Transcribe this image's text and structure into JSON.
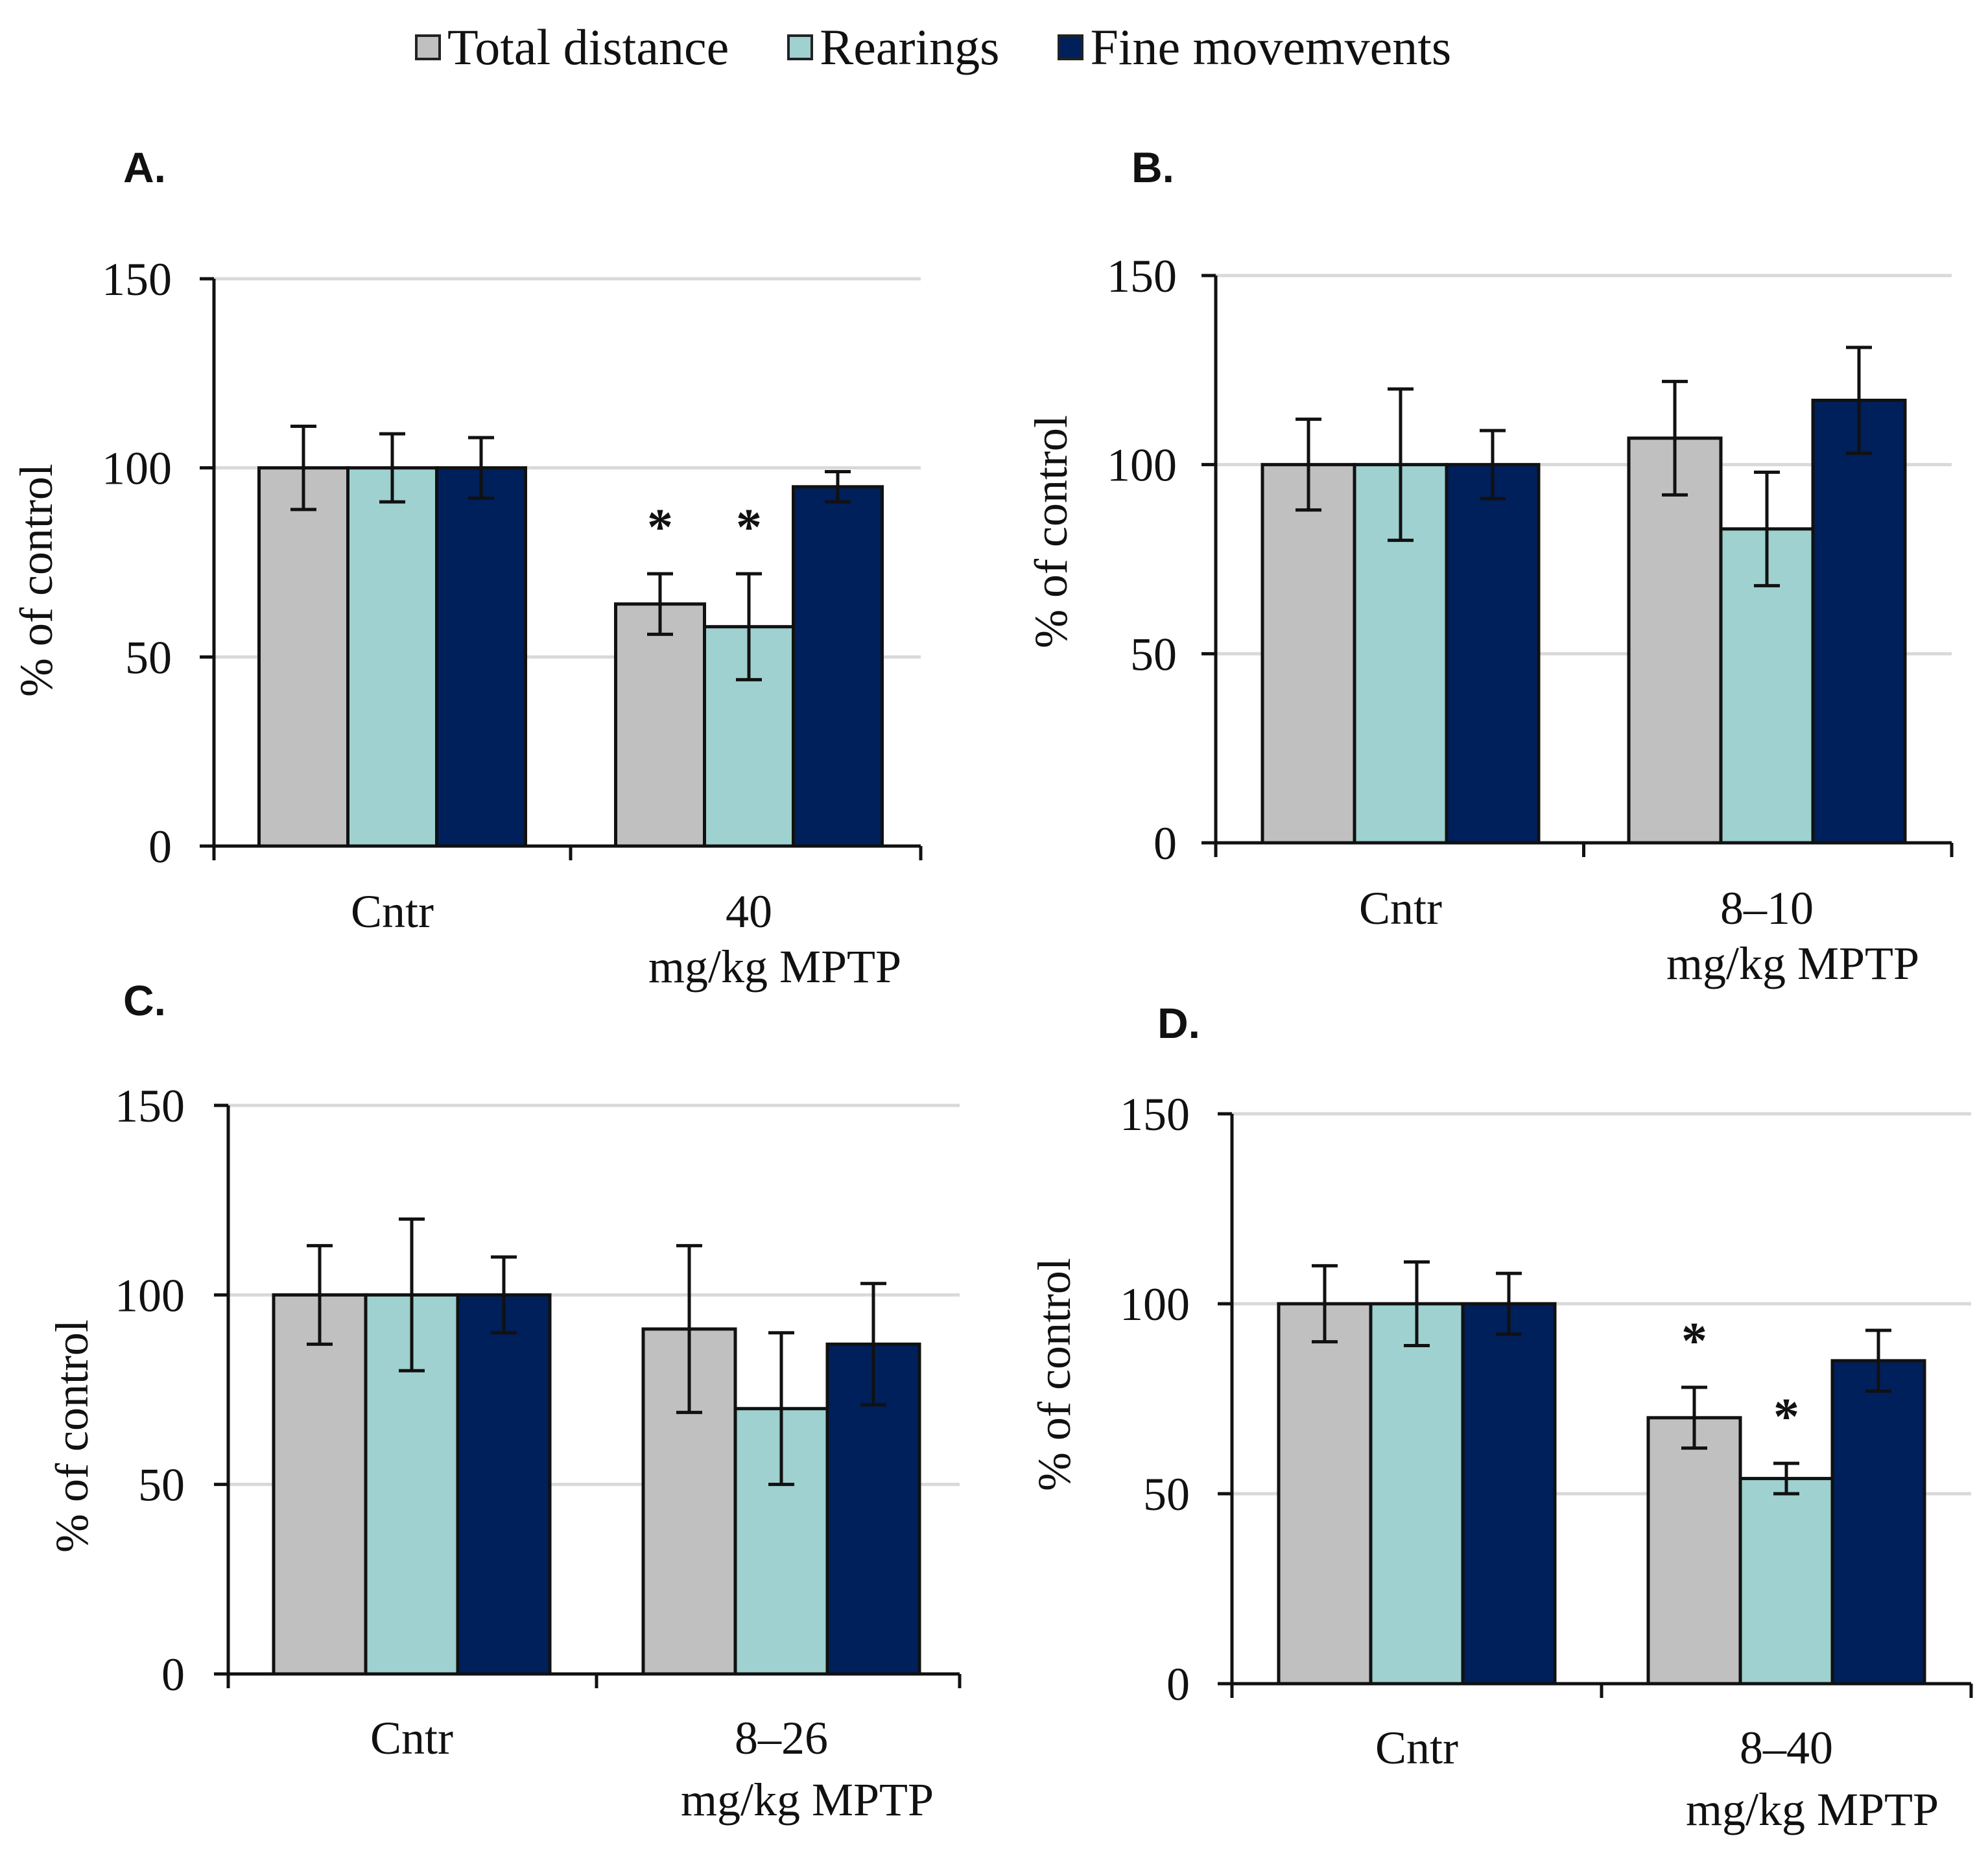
{
  "legend": [
    {
      "label": "Total distance",
      "color": "#c0c0c0"
    },
    {
      "label": "Rearings",
      "color": "#9ed1d0"
    },
    {
      "label": "Fine movemvents",
      "color": "#00205b"
    }
  ],
  "chart_data": [
    {
      "type": "bar",
      "panel": "A.",
      "ylabel": "% of control",
      "ylim": [
        0,
        150
      ],
      "yticks": [
        "0",
        "50",
        "100",
        "150"
      ],
      "categories": [
        [
          "Cntr"
        ],
        [
          "40",
          "mg/kg MPTP"
        ]
      ],
      "series": [
        {
          "name": "Total distance",
          "values": [
            100,
            64
          ],
          "errors": [
            11,
            8
          ],
          "sig": [
            false,
            true
          ]
        },
        {
          "name": "Rearings",
          "values": [
            100,
            58
          ],
          "errors": [
            9,
            14
          ],
          "sig": [
            false,
            true
          ]
        },
        {
          "name": "Fine movemvents",
          "values": [
            100,
            95
          ],
          "errors": [
            8,
            4
          ],
          "sig": [
            false,
            false
          ]
        }
      ],
      "sig_mark": "*"
    },
    {
      "type": "bar",
      "panel": "B.",
      "ylabel": "% of control",
      "ylim": [
        0,
        150
      ],
      "yticks": [
        "0",
        "50",
        "100",
        "150"
      ],
      "categories": [
        [
          "Cntr"
        ],
        [
          "8–10",
          "mg/kg MPTP"
        ]
      ],
      "series": [
        {
          "name": "Total distance",
          "values": [
            100,
            107
          ],
          "errors": [
            12,
            15
          ],
          "sig": [
            false,
            false
          ]
        },
        {
          "name": "Rearings",
          "values": [
            100,
            83
          ],
          "errors": [
            20,
            15
          ],
          "sig": [
            false,
            false
          ]
        },
        {
          "name": "Fine movemvents",
          "values": [
            100,
            117
          ],
          "errors": [
            9,
            14
          ],
          "sig": [
            false,
            false
          ]
        }
      ],
      "sig_mark": "*"
    },
    {
      "type": "bar",
      "panel": "C.",
      "ylabel": "% of control",
      "ylim": [
        0,
        150
      ],
      "yticks": [
        "0",
        "50",
        "100",
        "150"
      ],
      "categories": [
        [
          "Cntr"
        ],
        [
          "8–26",
          "mg/kg MPTP"
        ]
      ],
      "series": [
        {
          "name": "Total distance",
          "values": [
            100,
            91
          ],
          "errors": [
            13,
            22
          ],
          "sig": [
            false,
            false
          ]
        },
        {
          "name": "Rearings",
          "values": [
            100,
            70
          ],
          "errors": [
            20,
            20
          ],
          "sig": [
            false,
            false
          ]
        },
        {
          "name": "Fine movemvents",
          "values": [
            100,
            87
          ],
          "errors": [
            10,
            16
          ],
          "sig": [
            false,
            false
          ]
        }
      ],
      "sig_mark": "*"
    },
    {
      "type": "bar",
      "panel": "D.",
      "ylabel": "% of control",
      "ylim": [
        0,
        150
      ],
      "yticks": [
        "0",
        "50",
        "100",
        "150"
      ],
      "categories": [
        [
          "Cntr"
        ],
        [
          "8–40",
          "mg/kg MPTP"
        ]
      ],
      "series": [
        {
          "name": "Total distance",
          "values": [
            100,
            70
          ],
          "errors": [
            10,
            8
          ],
          "sig": [
            false,
            true
          ]
        },
        {
          "name": "Rearings",
          "values": [
            100,
            54
          ],
          "errors": [
            11,
            4
          ],
          "sig": [
            false,
            true
          ]
        },
        {
          "name": "Fine movemvents",
          "values": [
            100,
            85
          ],
          "errors": [
            8,
            8
          ],
          "sig": [
            false,
            false
          ]
        }
      ],
      "sig_mark": "*"
    }
  ]
}
